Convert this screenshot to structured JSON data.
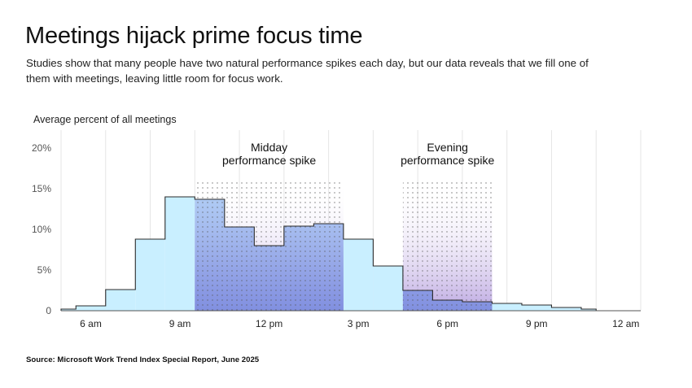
{
  "title": "Meetings hijack prime focus time",
  "subtitle": "Studies show that many people have two natural performance spikes each day, but our data reveals that we fill one of them with meetings, leaving little room for focus work.",
  "source": "Source: Microsoft Work Trend Index Special Report, June 2025",
  "colors": {
    "bar_fill": "#c9efff",
    "bar_stroke": "#2b2b2b",
    "highlight_purple": "#a78bd8",
    "highlight_blue": "#7f8fe0",
    "dots": "#555555",
    "grid": "#e6e6e6"
  },
  "chart_data": {
    "type": "area",
    "step": true,
    "ylabel": "Average percent of all meetings",
    "ylim": [
      0,
      20
    ],
    "y_ticks": [
      0,
      5,
      10,
      15,
      20
    ],
    "y_tick_labels": [
      "0",
      "5%",
      "10%",
      "15%",
      "20%"
    ],
    "x_ticks": [
      6,
      9,
      12,
      15,
      18,
      21,
      24
    ],
    "x_tick_labels": [
      "6 am",
      "9 am",
      "12 pm",
      "3 pm",
      "6 pm",
      "9 pm",
      "12 am"
    ],
    "bins": [
      {
        "start": 5.0,
        "end": 5.5,
        "value": 0.2
      },
      {
        "start": 5.5,
        "end": 6.5,
        "value": 0.6
      },
      {
        "start": 6.5,
        "end": 7.5,
        "value": 2.6
      },
      {
        "start": 7.5,
        "end": 8.5,
        "value": 8.8
      },
      {
        "start": 8.5,
        "end": 9.5,
        "value": 14.0
      },
      {
        "start": 9.5,
        "end": 10.5,
        "value": 13.7
      },
      {
        "start": 10.5,
        "end": 11.5,
        "value": 10.3
      },
      {
        "start": 11.5,
        "end": 12.5,
        "value": 8.0
      },
      {
        "start": 12.5,
        "end": 13.5,
        "value": 10.4
      },
      {
        "start": 13.5,
        "end": 14.5,
        "value": 10.7
      },
      {
        "start": 14.5,
        "end": 15.5,
        "value": 8.8
      },
      {
        "start": 15.5,
        "end": 16.5,
        "value": 5.5
      },
      {
        "start": 16.5,
        "end": 17.5,
        "value": 2.5
      },
      {
        "start": 17.5,
        "end": 18.5,
        "value": 1.3
      },
      {
        "start": 18.5,
        "end": 19.5,
        "value": 1.1
      },
      {
        "start": 19.5,
        "end": 20.5,
        "value": 0.9
      },
      {
        "start": 20.5,
        "end": 21.5,
        "value": 0.7
      },
      {
        "start": 21.5,
        "end": 22.5,
        "value": 0.4
      },
      {
        "start": 22.5,
        "end": 23.0,
        "value": 0.2
      },
      {
        "start": 23.0,
        "end": 24.5,
        "value": 0.0
      }
    ],
    "highlights": [
      {
        "label_line1": "Midday",
        "label_line2": "performance spike",
        "start": 9.5,
        "end": 14.5,
        "top": 16
      },
      {
        "label_line1": "Evening",
        "label_line2": "performance spike",
        "start": 16.5,
        "end": 19.5,
        "top": 16
      }
    ]
  }
}
